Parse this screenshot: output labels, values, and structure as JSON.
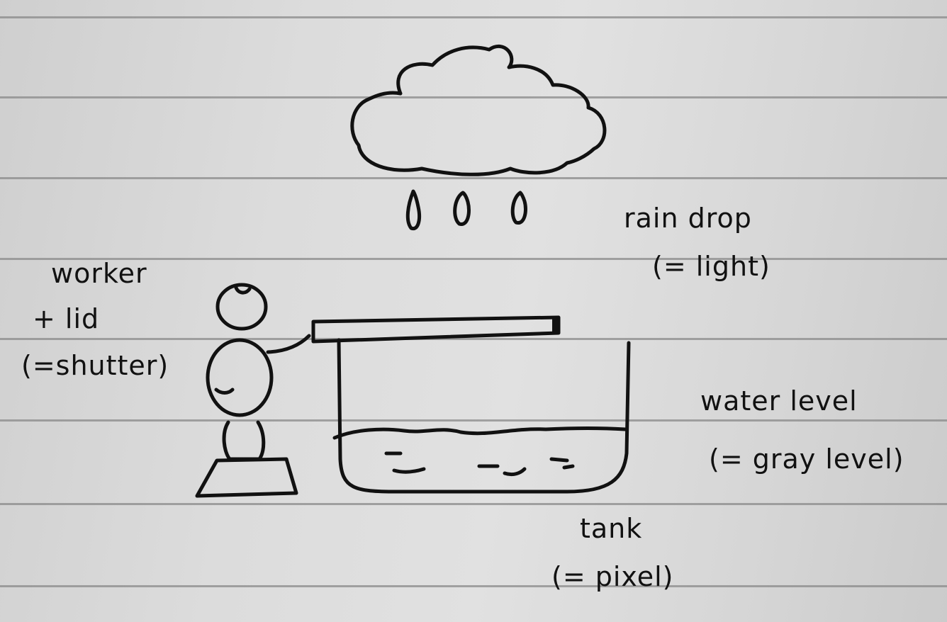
{
  "labels": {
    "rain_drop": "rain drop",
    "rain_drop_meaning": "(= light)",
    "worker": "worker",
    "worker_lid": "+ lid",
    "worker_meaning": "(=shutter)",
    "water_level": "water level",
    "water_level_meaning": "(= gray level)",
    "tank": "tank",
    "tank_meaning": "(= pixel)"
  },
  "colors": {
    "ink": "#111111",
    "paper": "#dcdcdc",
    "rule_line": "#8a8a8a"
  }
}
